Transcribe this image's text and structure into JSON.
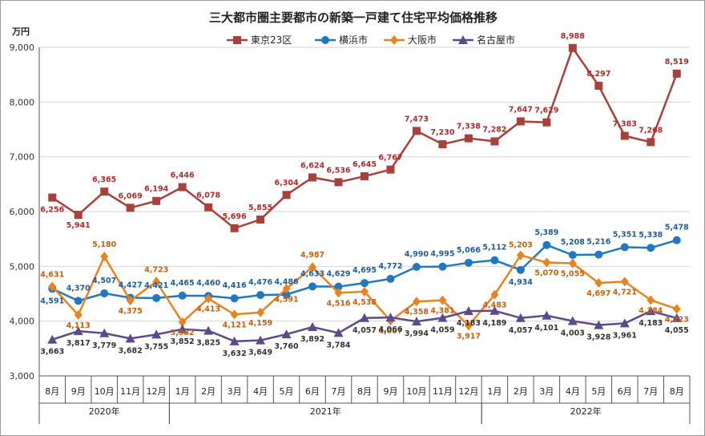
{
  "chart_data": {
    "type": "line",
    "title": "三大都市圏主要都市の新築一戸建て住宅平均価格推移",
    "unit_label": "万円",
    "ylim": [
      3000,
      9000
    ],
    "yticks": [
      "3,000",
      "4,000",
      "5,000",
      "6,000",
      "7,000",
      "8,000",
      "9,000"
    ],
    "grid": "horizontal",
    "legend_position": "top",
    "categories": [
      "8月",
      "9月",
      "10月",
      "11月",
      "12月",
      "1月",
      "2月",
      "3月",
      "4月",
      "5月",
      "6月",
      "7月",
      "8月",
      "9月",
      "10月",
      "11月",
      "12月",
      "1月",
      "2月",
      "3月",
      "4月",
      "5月",
      "6月",
      "7月",
      "8月"
    ],
    "years": [
      {
        "label": "2020年",
        "start": 0,
        "end": 4
      },
      {
        "label": "2021年",
        "start": 5,
        "end": 16
      },
      {
        "label": "2022年",
        "start": 17,
        "end": 24
      }
    ],
    "series": [
      {
        "name": "東京23区",
        "color": "#b22a29",
        "line": "#a8413b",
        "marker": "square",
        "values": [
          6256,
          5941,
          6365,
          6069,
          6194,
          6446,
          6078,
          5696,
          5855,
          6304,
          6624,
          6536,
          6645,
          6767,
          7473,
          7230,
          7338,
          7282,
          7647,
          7629,
          8988,
          8297,
          7383,
          7268,
          8519
        ],
        "labels": [
          "6,256",
          "5,941",
          "6,365",
          "6,069",
          "6,194",
          "6,446",
          "6,078",
          "5,696",
          "5,855",
          "6,304",
          "6,624",
          "6,536",
          "6,645",
          "6,767",
          "7,473",
          "7,230",
          "7,338",
          "7,282",
          "7,647",
          "7,629",
          "8,988",
          "8,297",
          "7,383",
          "7,268",
          "8,519"
        ]
      },
      {
        "name": "横浜市",
        "color": "#1f5c99",
        "line": "#1f78c1",
        "marker": "circle",
        "values": [
          4591,
          4370,
          4507,
          4427,
          4421,
          4465,
          4460,
          4416,
          4476,
          4486,
          4633,
          4629,
          4695,
          4772,
          4990,
          4995,
          5066,
          5112,
          4934,
          5389,
          5208,
          5216,
          5351,
          5338,
          5478
        ],
        "labels": [
          "4,591",
          "4,370",
          "4,507",
          "4,427",
          "4,421",
          "4,465",
          "4,460",
          "4,416",
          "4,476",
          "4,486",
          "4,633",
          "4,629",
          "4,695",
          "4,772",
          "4,990",
          "4,995",
          "5,066",
          "5,112",
          "4,934",
          "5,389",
          "5,208",
          "5,216",
          "5,351",
          "5,338",
          "5,478"
        ]
      },
      {
        "name": "大阪市",
        "color": "#c85f0a",
        "line": "#e7841f",
        "marker": "diamond",
        "values": [
          4631,
          4113,
          5180,
          4375,
          4723,
          3982,
          4413,
          4121,
          4159,
          4591,
          4987,
          4516,
          4538,
          4007,
          4358,
          4381,
          3917,
          4483,
          5203,
          5070,
          5055,
          4697,
          4721,
          4384,
          4223
        ],
        "labels": [
          "4,631",
          "4,113",
          "5,180",
          "4,375",
          "4,723",
          "3,982",
          "4,413",
          "4,121",
          "4,159",
          "4,591",
          "4,987",
          "4,516",
          "4,538",
          "4,007",
          "4,358",
          "4,381",
          "3,917",
          "4,483",
          "5,203",
          "5,070",
          "5,055",
          "4,697",
          "4,721",
          "4,384",
          "4,223"
        ]
      },
      {
        "name": "名古屋市",
        "color": "#333333",
        "line": "#5c4a8c",
        "marker": "triangle",
        "values": [
          3663,
          3817,
          3779,
          3682,
          3755,
          3852,
          3825,
          3632,
          3649,
          3760,
          3892,
          3784,
          4057,
          4066,
          3994,
          4059,
          4183,
          4189,
          4057,
          4101,
          4003,
          3928,
          3961,
          4183,
          4055
        ],
        "labels": [
          "3,663",
          "3,817",
          "3,779",
          "3,682",
          "3,755",
          "3,852",
          "3,825",
          "3,632",
          "3,649",
          "3,760",
          "3,892",
          "3,784",
          "4,057",
          "4,066",
          "3,994",
          "4,059",
          "4,183",
          "4,189",
          "4,057",
          "4,101",
          "4,003",
          "3,928",
          "3,961",
          "4,183",
          "4,055"
        ]
      }
    ]
  }
}
